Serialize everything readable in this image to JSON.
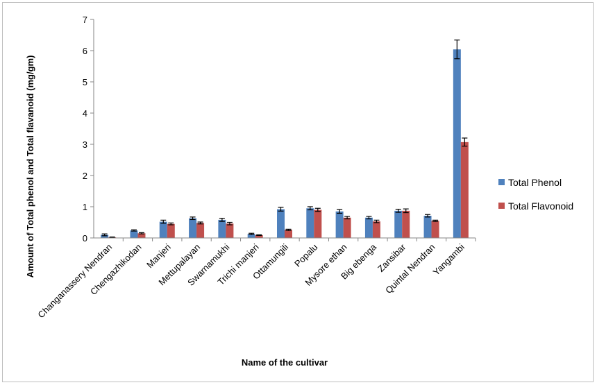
{
  "chart_data": {
    "type": "bar",
    "title": "",
    "xlabel": "Name of the cultivar",
    "ylabel": "Amount of Total phenol and Total flavanoid  (mg/gm)",
    "ylim": [
      0,
      7
    ],
    "yticks": [
      0,
      1,
      2,
      3,
      4,
      5,
      6,
      7
    ],
    "grid": false,
    "legend_position": "right",
    "categories": [
      "Changanassery Nendran",
      "Chengazhikodan",
      "Manjeri",
      "Mettupalayan",
      "Swarnamukhi",
      "Trichi manjeri",
      "Ottamungili",
      "Popalu",
      "Mysore ethan",
      "Big ebenga",
      "Zansibar",
      "Quintal Nendran",
      "Yangambi"
    ],
    "series": [
      {
        "name": "Total Phenol",
        "color": "#4f81bd",
        "values": [
          0.1,
          0.24,
          0.52,
          0.63,
          0.58,
          0.13,
          0.92,
          0.95,
          0.85,
          0.65,
          0.87,
          0.71,
          6.04
        ],
        "errors": [
          0.03,
          0.02,
          0.05,
          0.04,
          0.05,
          0.02,
          0.06,
          0.05,
          0.06,
          0.04,
          0.05,
          0.04,
          0.3
        ]
      },
      {
        "name": "Total Flavonoid",
        "color": "#c0504d",
        "values": [
          0.02,
          0.15,
          0.45,
          0.48,
          0.46,
          0.09,
          0.26,
          0.9,
          0.65,
          0.53,
          0.87,
          0.55,
          3.07
        ],
        "errors": [
          0.01,
          0.02,
          0.03,
          0.03,
          0.04,
          0.01,
          0.02,
          0.05,
          0.04,
          0.04,
          0.06,
          0.02,
          0.13
        ]
      }
    ]
  }
}
